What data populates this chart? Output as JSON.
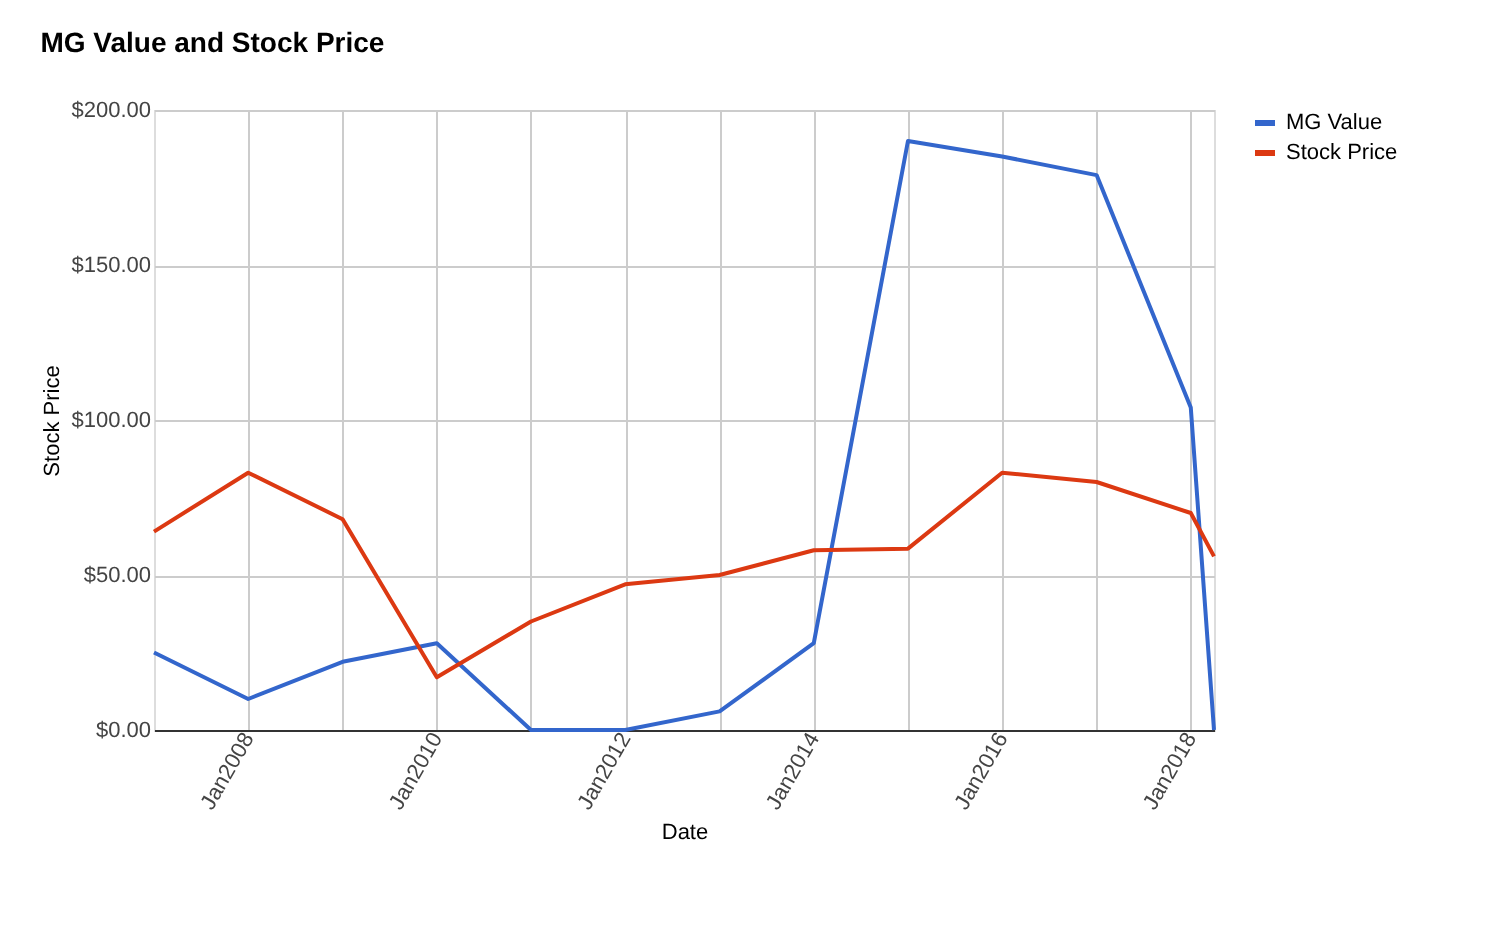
{
  "chart_data": {
    "type": "line",
    "title": "MG Value and Stock Price",
    "xlabel": "Date",
    "ylabel": "Stock Price",
    "x": [
      "2007-01",
      "2008-01",
      "2009-01",
      "2010-01",
      "2011-01",
      "2012-01",
      "2013-01",
      "2014-01",
      "2015-01",
      "2016-01",
      "2017-01",
      "2018-01",
      "2018-04"
    ],
    "series": [
      {
        "name": "MG Value",
        "color": "#3366cc",
        "values": [
          25,
          10,
          22,
          28,
          0,
          0,
          6,
          28,
          190,
          185,
          179,
          104,
          0
        ]
      },
      {
        "name": "Stock Price",
        "color": "#dc3912",
        "values": [
          64,
          83,
          68,
          17,
          35,
          47,
          50,
          58,
          58.5,
          83,
          80,
          70,
          56
        ]
      }
    ],
    "xlim": [
      "2007-01",
      "2018-04"
    ],
    "xticks": [
      {
        "value": "2008-01",
        "label": "Jan2008"
      },
      {
        "value": "2009-01",
        "label": null
      },
      {
        "value": "2010-01",
        "label": "Jan2010"
      },
      {
        "value": "2011-01",
        "label": null
      },
      {
        "value": "2012-01",
        "label": "Jan2012"
      },
      {
        "value": "2013-01",
        "label": null
      },
      {
        "value": "2014-01",
        "label": "Jan2014"
      },
      {
        "value": "2015-01",
        "label": null
      },
      {
        "value": "2016-01",
        "label": "Jan2016"
      },
      {
        "value": "2017-01",
        "label": null
      },
      {
        "value": "2018-01",
        "label": "Jan2018"
      }
    ],
    "ylim": [
      0,
      200
    ],
    "yticks": [
      {
        "value": 0,
        "label": "$0.00"
      },
      {
        "value": 50,
        "label": "$50.00"
      },
      {
        "value": 100,
        "label": "$100.00"
      },
      {
        "value": 150,
        "label": "$150.00"
      },
      {
        "value": 200,
        "label": "$200.00"
      }
    ],
    "grid": true,
    "legend": "top right",
    "marker": "none",
    "line_style": "solid"
  }
}
